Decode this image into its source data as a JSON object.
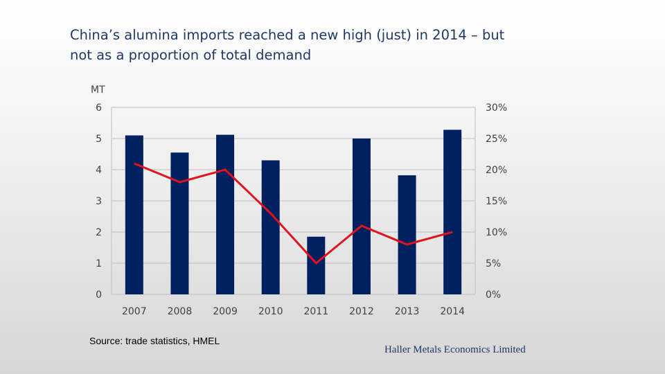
{
  "slide": {
    "title_line1": "China’s alumina imports reached a new high (just) in 2014 – but",
    "title_line2": "not as a proportion of total demand",
    "source": "Source: trade statistics, HMEL",
    "company": "Haller Metals Economics Limited"
  },
  "chart_data": {
    "type": "bar+line",
    "categories": [
      "2007",
      "2008",
      "2009",
      "2010",
      "2011",
      "2012",
      "2013",
      "2014"
    ],
    "series": [
      {
        "name": "Alumina imports",
        "type": "bar",
        "axis": "left",
        "color": "#002060",
        "values": [
          5.1,
          4.55,
          5.12,
          4.3,
          1.85,
          5.0,
          3.82,
          5.28
        ]
      },
      {
        "name": "Imports as share of total demand",
        "type": "line",
        "axis": "right",
        "color": "#e0141e",
        "values": [
          21,
          18,
          20,
          13,
          5,
          11,
          8,
          10
        ]
      }
    ],
    "left_axis": {
      "label": "MT",
      "min": 0,
      "max": 6,
      "ticks": [
        "0",
        "1",
        "2",
        "3",
        "4",
        "5",
        "6"
      ]
    },
    "right_axis": {
      "label": "",
      "min": 0,
      "max": 30,
      "ticks": [
        "0%",
        "5%",
        "10%",
        "15%",
        "20%",
        "25%",
        "30%"
      ]
    },
    "grid": true,
    "legend": "none"
  }
}
